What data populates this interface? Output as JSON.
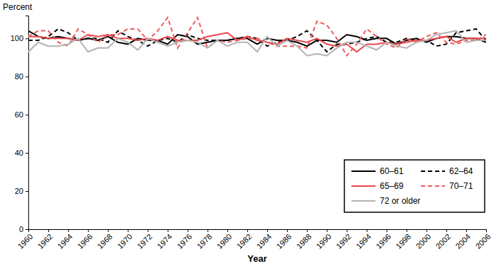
{
  "chart_data": {
    "type": "line",
    "y_label": "Percent",
    "x_label": "Year",
    "x": [
      1960,
      1961,
      1962,
      1963,
      1964,
      1965,
      1966,
      1967,
      1968,
      1969,
      1970,
      1971,
      1972,
      1973,
      1974,
      1975,
      1976,
      1977,
      1978,
      1979,
      1980,
      1981,
      1982,
      1983,
      1984,
      1985,
      1986,
      1987,
      1988,
      1989,
      1990,
      1991,
      1992,
      1993,
      1994,
      1995,
      1996,
      1997,
      1998,
      1999,
      2000,
      2001,
      2002,
      2003,
      2004,
      2005,
      2006
    ],
    "xlim": [
      1960,
      2006
    ],
    "xticks": [
      1960,
      1962,
      1964,
      1966,
      1968,
      1970,
      1972,
      1974,
      1976,
      1978,
      1980,
      1982,
      1984,
      1986,
      1988,
      1990,
      1992,
      1994,
      1996,
      1998,
      2000,
      2002,
      2004,
      2006
    ],
    "ylim": [
      0,
      112
    ],
    "yticks": [
      0,
      20,
      40,
      60,
      80,
      100
    ],
    "grid": false,
    "legend": "lower right",
    "series": [
      {
        "name": "60–61",
        "color": "#000000",
        "line_style": "solid",
        "values": [
          104,
          101,
          100,
          101,
          100,
          99,
          100,
          99,
          101,
          98,
          97,
          100,
          99,
          99,
          97,
          102,
          101,
          97,
          98,
          99,
          99,
          100,
          100,
          97,
          100,
          99,
          99,
          98,
          96,
          99,
          99,
          98,
          102,
          101,
          99,
          100,
          100,
          97,
          99,
          100,
          98,
          100,
          101,
          101,
          100,
          100,
          98
        ]
      },
      {
        "name": "62–64",
        "color": "#000000",
        "line_style": "dashed",
        "values": [
          99,
          99,
          101,
          105,
          103,
          99,
          100,
          100,
          98,
          104,
          101,
          99,
          96,
          99,
          100,
          98,
          102,
          100,
          99,
          99,
          99,
          100,
          101,
          100,
          96,
          98,
          99,
          101,
          104,
          99,
          93,
          97,
          97,
          98,
          100,
          101,
          98,
          98,
          100,
          99,
          99,
          96,
          97,
          103,
          104,
          105,
          99
        ]
      },
      {
        "name": "65–69",
        "color": "#e8464a",
        "line_style": "solid",
        "values": [
          101,
          101,
          100,
          100,
          100,
          99,
          102,
          101,
          102,
          100,
          100,
          99,
          100,
          99,
          101,
          99,
          99,
          99,
          101,
          102,
          103,
          99,
          101,
          99,
          98,
          97,
          100,
          99,
          98,
          100,
          97,
          96,
          97,
          93,
          97,
          97,
          98,
          97,
          98,
          99,
          99,
          100,
          101,
          98,
          100,
          100,
          100
        ]
      },
      {
        "name": "70–71",
        "color": "#f0595c",
        "line_style": "dashed",
        "values": [
          101,
          104,
          104,
          98,
          96,
          105,
          102,
          98,
          102,
          102,
          105,
          105,
          99,
          104,
          111,
          95,
          103,
          111,
          95,
          99,
          98,
          99,
          100,
          100,
          98,
          96,
          96,
          96,
          95,
          109,
          107,
          100,
          91,
          97,
          105,
          101,
          97,
          95,
          100,
          98,
          101,
          103,
          98,
          97,
          99,
          99,
          102
        ]
      },
      {
        "name": "72 or older",
        "color": "#b3b3b3",
        "line_style": "solid",
        "values": [
          93,
          98,
          96,
          96,
          97,
          100,
          93,
          95,
          95,
          100,
          98,
          94,
          100,
          98,
          96,
          98,
          99,
          98,
          95,
          99,
          96,
          98,
          98,
          93,
          101,
          96,
          99,
          96,
          91,
          92,
          91,
          95,
          98,
          98,
          96,
          94,
          98,
          96,
          95,
          98,
          99,
          102,
          103,
          104,
          98,
          99,
          99
        ]
      }
    ]
  }
}
